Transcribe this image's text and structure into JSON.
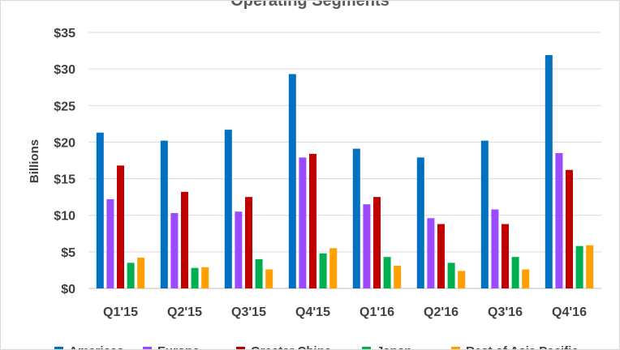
{
  "chart_data": {
    "type": "bar",
    "title": "Operating Segments",
    "ylabel": "Billions",
    "xlabel": "",
    "ylim": [
      0,
      35
    ],
    "yticks": [
      0,
      5,
      10,
      15,
      20,
      25,
      30,
      35
    ],
    "ytick_labels": [
      "$0",
      "$5",
      "$10",
      "$15",
      "$20",
      "$25",
      "$30",
      "$35"
    ],
    "grid": true,
    "legend_position": "bottom",
    "categories": [
      "Q1'15",
      "Q2'15",
      "Q3'15",
      "Q4'15",
      "Q1'16",
      "Q2'16",
      "Q3'16",
      "Q4'16"
    ],
    "series": [
      {
        "name": "Americas",
        "color": "#0070c0",
        "values": [
          21.3,
          20.2,
          21.7,
          29.3,
          19.1,
          17.9,
          20.2,
          31.9
        ]
      },
      {
        "name": "Europe",
        "color": "#9b4bff",
        "values": [
          12.2,
          10.3,
          10.5,
          17.9,
          11.5,
          9.6,
          10.8,
          18.5
        ]
      },
      {
        "name": "Greater China",
        "color": "#c00000",
        "values": [
          16.8,
          13.2,
          12.5,
          18.4,
          12.5,
          8.8,
          8.8,
          16.2
        ]
      },
      {
        "name": "Japan",
        "color": "#00b050",
        "values": [
          3.5,
          2.8,
          4.0,
          4.8,
          4.3,
          3.5,
          4.3,
          5.8
        ]
      },
      {
        "name": "Rest of Asia Pacific",
        "color": "#ffa000",
        "values": [
          4.2,
          2.9,
          2.6,
          5.5,
          3.1,
          2.4,
          2.6,
          5.9
        ]
      }
    ]
  }
}
